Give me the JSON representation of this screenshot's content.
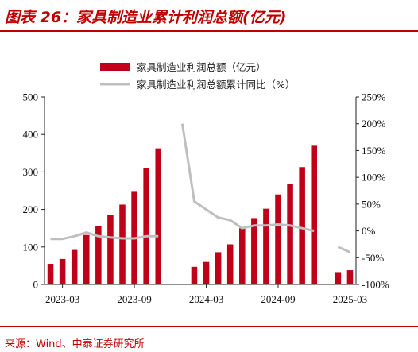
{
  "header": {
    "title": "图表 26：家具制造业累计利润总额(亿元)"
  },
  "footer": {
    "source": "来源：Wind、中泰证券研究所"
  },
  "colors": {
    "bar": "#c00018",
    "line": "#bfbfbf",
    "accent": "#c00000"
  },
  "chart_data": {
    "type": "bar",
    "categories": [
      "2023-02",
      "2023-03",
      "2023-04",
      "2023-05",
      "2023-06",
      "2023-07",
      "2023-08",
      "2023-09",
      "2023-10",
      "2023-11",
      "2023-12",
      "2024-01",
      "2024-02",
      "2024-03",
      "2024-04",
      "2024-05",
      "2024-06",
      "2024-07",
      "2024-08",
      "2024-09",
      "2024-10",
      "2024-11",
      "2024-12",
      "2025-01",
      "2025-02",
      "2025-03"
    ],
    "series": [
      {
        "name": "家具制造业利润总额（亿元）",
        "type": "bar",
        "axis": "left",
        "values": [
          55,
          68,
          92,
          132,
          155,
          185,
          213,
          247,
          311,
          363,
          null,
          null,
          47,
          60,
          86,
          107,
          150,
          177,
          202,
          240,
          267,
          313,
          370,
          null,
          33,
          38
        ]
      },
      {
        "name": "家具制造业利润总额累计同比（%）",
        "type": "line",
        "axis": "right",
        "values": [
          -15,
          -15,
          -10,
          -3,
          -10,
          -12,
          -14,
          -14,
          -10,
          -10,
          null,
          200,
          55,
          40,
          25,
          20,
          5,
          10,
          10,
          12,
          10,
          5,
          0,
          null,
          -30,
          -40
        ]
      }
    ],
    "x_tick_labels": [
      {
        "label": "2023-03",
        "at": "2023-03"
      },
      {
        "label": "2023-09",
        "at": "2023-09"
      },
      {
        "label": "2024-03",
        "at": "2024-03"
      },
      {
        "label": "2024-09",
        "at": "2024-09"
      },
      {
        "label": "2025-03",
        "at": "2025-03"
      }
    ],
    "y_left": {
      "ylim": [
        0,
        500
      ],
      "ticks": [
        "0",
        "100",
        "200",
        "300",
        "400",
        "500"
      ]
    },
    "y_right": {
      "ylim": [
        -100,
        250
      ],
      "ticks": [
        "-100%",
        "-50%",
        "0%",
        "50%",
        "100%",
        "150%",
        "200%",
        "250%"
      ]
    },
    "grid": false,
    "legend_position": "top"
  }
}
